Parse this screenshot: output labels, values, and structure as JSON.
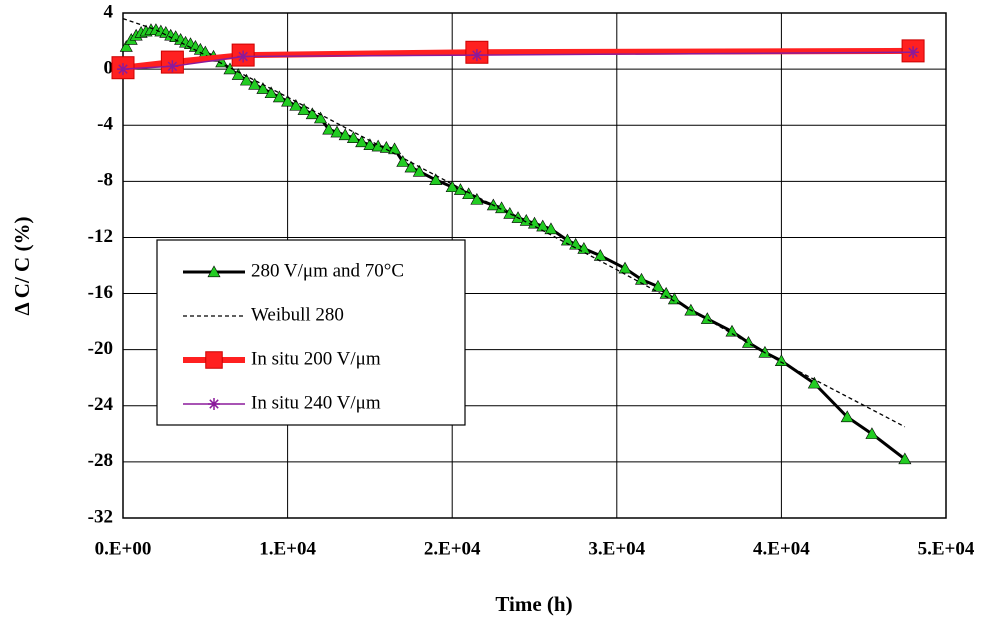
{
  "chart_data": {
    "type": "line",
    "x_label": "Time (h)",
    "y_label": "Δ C/ C (%)",
    "xlim": [
      0,
      50000
    ],
    "ylim": [
      -32,
      4
    ],
    "xticks": [
      {
        "value": 0,
        "label": "0.E+00"
      },
      {
        "value": 10000,
        "label": "1.E+04"
      },
      {
        "value": 20000,
        "label": "2.E+04"
      },
      {
        "value": 30000,
        "label": "3.E+04"
      },
      {
        "value": 40000,
        "label": "4.E+04"
      },
      {
        "value": 50000,
        "label": "5.E+04"
      }
    ],
    "yticks": [
      4,
      0,
      -4,
      -8,
      -12,
      -16,
      -20,
      -24,
      -28,
      -32
    ],
    "grid": true,
    "series": [
      {
        "name": "280 V/μm and 70°C",
        "color": "#000000",
        "marker": "triangle",
        "marker_color": "#22cc22",
        "dash": false,
        "x": [
          200,
          500,
          800,
          1100,
          1400,
          1700,
          2000,
          2300,
          2600,
          2900,
          3200,
          3500,
          3800,
          4100,
          4400,
          4700,
          5000,
          5500,
          6000,
          6500,
          7000,
          7500,
          8000,
          8500,
          9000,
          9500,
          10000,
          10500,
          11000,
          11500,
          12000,
          12500,
          13000,
          13500,
          14000,
          14500,
          15000,
          15500,
          16000,
          16500,
          17000,
          17500,
          18000,
          19000,
          20000,
          20500,
          21000,
          21500,
          22500,
          23000,
          23500,
          24000,
          24500,
          25000,
          25500,
          26000,
          27000,
          27500,
          28000,
          29000,
          30500,
          31500,
          32500,
          33000,
          33500,
          34500,
          35500,
          37000,
          38000,
          39000,
          40000,
          42000,
          44000,
          45500,
          47500
        ],
        "values": [
          1.6,
          2.1,
          2.4,
          2.6,
          2.7,
          2.8,
          2.8,
          2.7,
          2.6,
          2.4,
          2.3,
          2.1,
          1.9,
          1.8,
          1.6,
          1.4,
          1.2,
          0.9,
          0.5,
          0.0,
          -0.4,
          -0.8,
          -1.1,
          -1.4,
          -1.7,
          -2.0,
          -2.3,
          -2.6,
          -2.9,
          -3.2,
          -3.5,
          -4.3,
          -4.5,
          -4.7,
          -4.9,
          -5.2,
          -5.4,
          -5.5,
          -5.6,
          -5.7,
          -6.6,
          -7.0,
          -7.3,
          -7.9,
          -8.4,
          -8.6,
          -8.9,
          -9.3,
          -9.7,
          -9.9,
          -10.3,
          -10.6,
          -10.8,
          -11.0,
          -11.2,
          -11.4,
          -12.2,
          -12.5,
          -12.8,
          -13.3,
          -14.2,
          -15.0,
          -15.5,
          -16.0,
          -16.4,
          -17.2,
          -17.8,
          -18.7,
          -19.5,
          -20.2,
          -20.8,
          -22.4,
          -24.8,
          -26.0,
          -27.8
        ]
      },
      {
        "name": "Weibull 280",
        "color": "#000000",
        "marker": "none",
        "dash": true,
        "x": [
          0,
          2000,
          5000,
          10000,
          15000,
          20000,
          25000,
          30000,
          35000,
          40000,
          47500
        ],
        "values": [
          3.6,
          2.8,
          1.0,
          -2.0,
          -5.1,
          -8.2,
          -11.2,
          -14.3,
          -17.5,
          -20.9,
          -25.5
        ]
      },
      {
        "name": "In situ 200 V/μm",
        "color": "#ff2020",
        "marker": "square",
        "marker_color": "#ff2020",
        "dash": false,
        "x": [
          0,
          3000,
          7300,
          21500,
          48000
        ],
        "values": [
          0.1,
          0.5,
          1.0,
          1.2,
          1.3
        ]
      },
      {
        "name": "In situ 240 V/μm",
        "color": "#8b1a9b",
        "marker": "star",
        "marker_color": "#8b1a9b",
        "dash": false,
        "x": [
          0,
          3000,
          7300,
          21500,
          48000
        ],
        "values": [
          0.0,
          0.2,
          0.9,
          1.0,
          1.2
        ]
      }
    ]
  }
}
